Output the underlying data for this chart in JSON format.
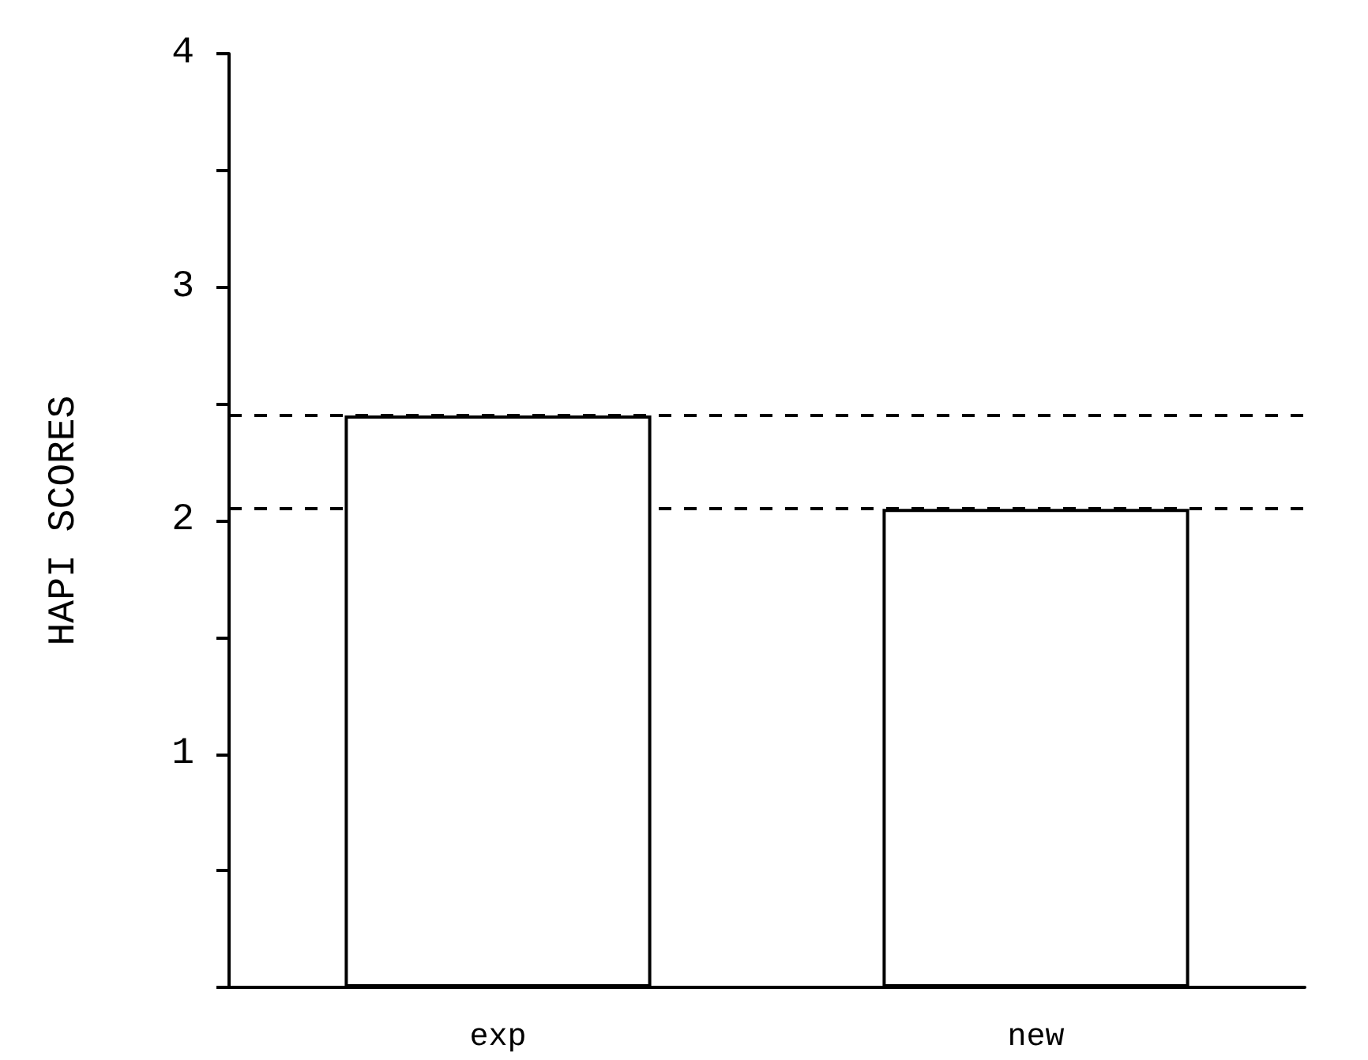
{
  "chart_data": {
    "type": "bar",
    "ylabel": "HAPI SCORES",
    "categories": [
      "exp",
      "new"
    ],
    "values": [
      2.45,
      2.05
    ],
    "color": "#ffffff",
    "ylim": [
      0,
      4
    ],
    "yticks": [
      {
        "value": 0,
        "label": null
      },
      {
        "value": 0.5,
        "label": null
      },
      1,
      {
        "value": 1.5,
        "label": null
      },
      2,
      {
        "value": 2.5,
        "label": null
      },
      3,
      {
        "value": 3.5,
        "label": null
      },
      4
    ],
    "ref_lines": [
      {
        "axis": "y",
        "value": 2.45,
        "line_style": "dashed",
        "color": "#000000"
      },
      {
        "axis": "y",
        "value": 2.05,
        "line_style": "dashed",
        "color": "#000000"
      }
    ],
    "line_style": "solid"
  }
}
